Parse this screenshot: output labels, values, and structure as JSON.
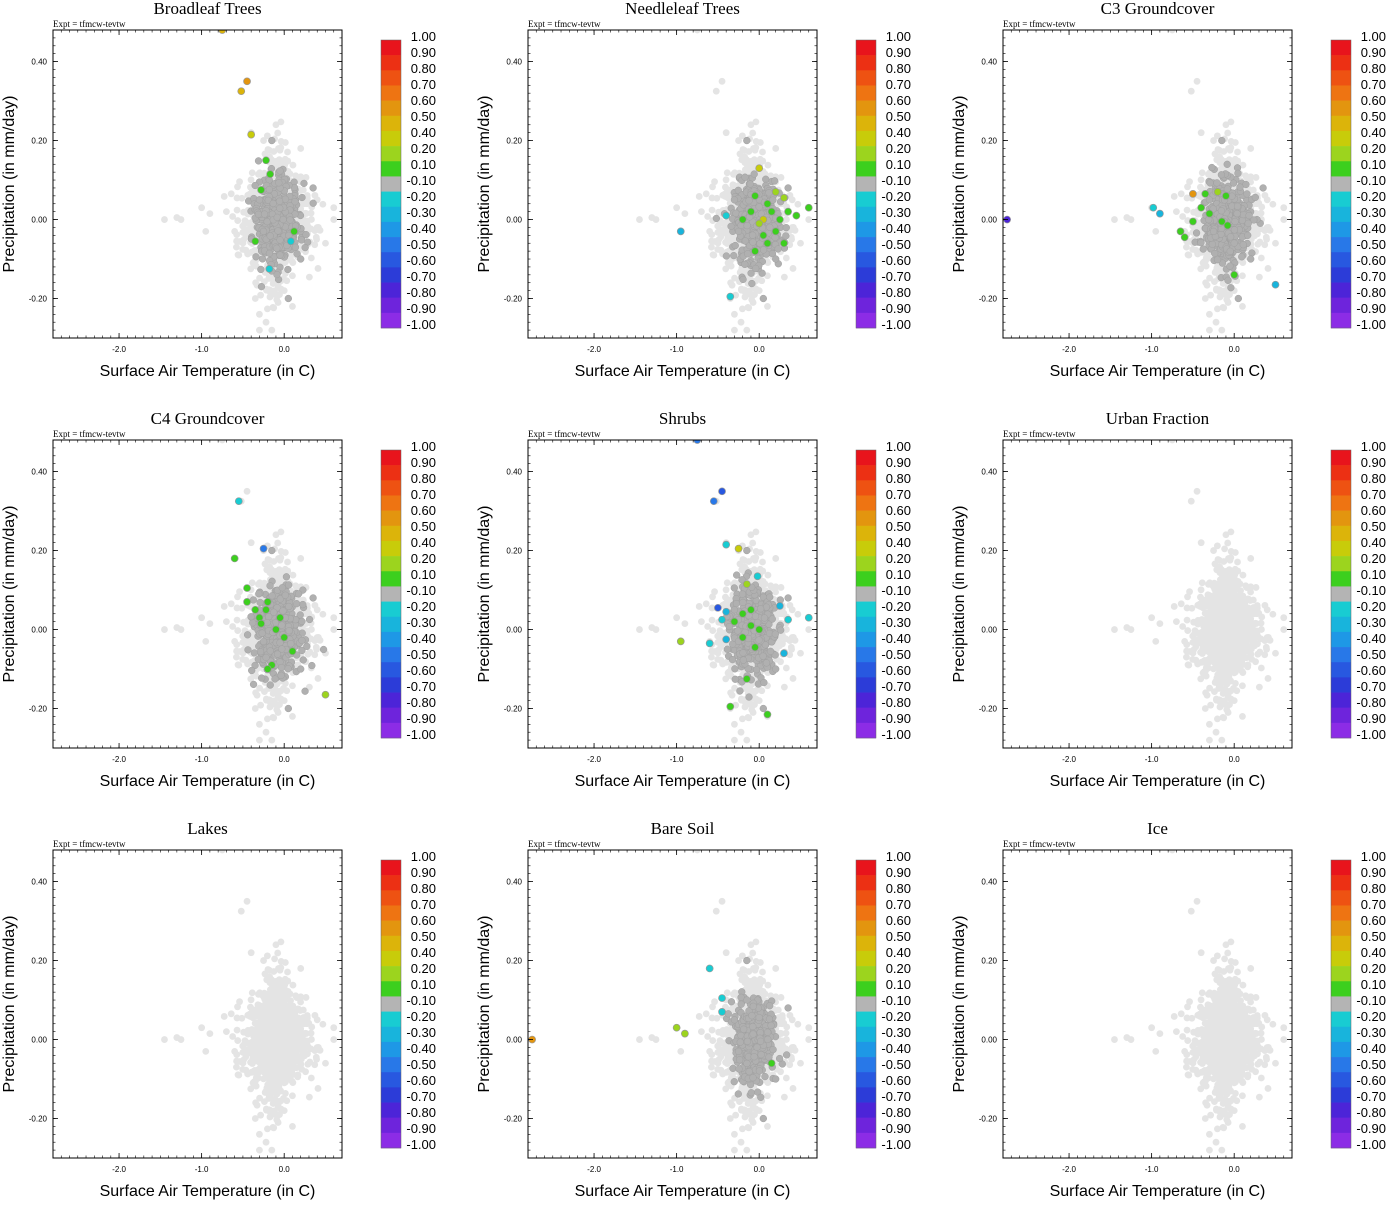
{
  "figure": {
    "expt_label": "Expt = tfmcw-tevtw"
  },
  "chart_data": [
    {
      "type": "scatter",
      "title": "Broadleaf Trees",
      "xlabel": "Surface Air Temperature (in C)",
      "ylabel": "Precipitation (in mm/day)",
      "xlim": [
        -2.8,
        0.7
      ],
      "ylim": [
        -0.3,
        0.48
      ],
      "xticks": [
        "-2.0",
        "-1.0",
        "0.0"
      ],
      "yticks": [
        "0.40",
        "0.20",
        "0.00",
        "-0.20"
      ],
      "highlight": [
        [
          -0.75,
          0.48,
          0.5
        ],
        [
          -0.45,
          0.35,
          0.55
        ],
        [
          -0.52,
          0.325,
          0.5
        ],
        [
          -0.4,
          0.215,
          0.35
        ],
        [
          -0.22,
          0.15,
          0.15
        ],
        [
          -0.17,
          0.115,
          0.15
        ],
        [
          -0.28,
          0.075,
          0.15
        ],
        [
          -0.35,
          -0.055,
          0.15
        ],
        [
          0.12,
          -0.03,
          0.15
        ],
        [
          -0.18,
          -0.125,
          -0.25
        ],
        [
          0.08,
          -0.055,
          -0.25
        ]
      ],
      "dark_spread": 1.0,
      "light_spread": 1.0
    },
    {
      "type": "scatter",
      "title": "Needleleaf Trees",
      "xlabel": "Surface Air Temperature (in C)",
      "ylabel": "Precipitation (in mm/day)",
      "xlim": [
        -2.8,
        0.7
      ],
      "ylim": [
        -0.3,
        0.48
      ],
      "xticks": [
        "-2.0",
        "-1.0",
        "0.0"
      ],
      "yticks": [
        "0.40",
        "0.20",
        "0.00",
        "-0.20"
      ],
      "highlight": [
        [
          0.0,
          0.13,
          0.35
        ],
        [
          0.2,
          0.07,
          0.3
        ],
        [
          0.3,
          0.055,
          0.25
        ],
        [
          0.1,
          0.04,
          0.15
        ],
        [
          -0.05,
          0.06,
          0.15
        ],
        [
          0.15,
          0.02,
          0.15
        ],
        [
          0.05,
          0.0,
          0.4
        ],
        [
          0.35,
          0.02,
          0.15
        ],
        [
          0.45,
          0.01,
          0.15
        ],
        [
          0.6,
          0.03,
          0.15
        ],
        [
          -0.2,
          0.0,
          0.15
        ],
        [
          0.0,
          -0.01,
          0.2
        ],
        [
          0.2,
          -0.03,
          0.15
        ],
        [
          0.1,
          -0.06,
          0.15
        ],
        [
          -0.05,
          -0.08,
          0.15
        ],
        [
          0.3,
          -0.06,
          0.15
        ],
        [
          0.05,
          -0.04,
          0.15
        ],
        [
          -0.4,
          0.01,
          -0.25
        ],
        [
          -0.95,
          -0.03,
          -0.35
        ],
        [
          -0.35,
          -0.195,
          -0.25
        ],
        [
          0.25,
          0.0,
          0.15
        ],
        [
          -0.1,
          0.02,
          0.15
        ]
      ],
      "dark_spread": 1.0,
      "light_spread": 1.0
    },
    {
      "type": "scatter",
      "title": "C3 Groundcover",
      "xlabel": "Surface Air Temperature (in C)",
      "ylabel": "Precipitation (in mm/day)",
      "xlim": [
        -2.8,
        0.7
      ],
      "ylim": [
        -0.3,
        0.48
      ],
      "xticks": [
        "-2.0",
        "-1.0",
        "0.0"
      ],
      "yticks": [
        "0.40",
        "0.20",
        "0.00",
        "-0.20"
      ],
      "highlight": [
        [
          -2.75,
          0.0,
          -0.8
        ],
        [
          -0.98,
          0.03,
          -0.25
        ],
        [
          -0.9,
          0.015,
          -0.3
        ],
        [
          -0.5,
          0.065,
          0.55
        ],
        [
          -0.35,
          0.065,
          0.15
        ],
        [
          -0.2,
          0.07,
          0.2
        ],
        [
          -0.1,
          0.06,
          0.15
        ],
        [
          -0.4,
          0.03,
          0.15
        ],
        [
          -0.3,
          0.015,
          0.15
        ],
        [
          -0.5,
          -0.005,
          0.15
        ],
        [
          -0.6,
          -0.045,
          0.15
        ],
        [
          -0.65,
          -0.03,
          0.15
        ],
        [
          -0.15,
          -0.005,
          0.15
        ],
        [
          -0.08,
          -0.015,
          0.15
        ],
        [
          0.0,
          -0.14,
          0.15
        ],
        [
          0.5,
          -0.165,
          -0.35
        ]
      ],
      "dark_spread": 1.0,
      "light_spread": 1.0
    },
    {
      "type": "scatter",
      "title": "C4 Groundcover",
      "xlabel": "Surface Air Temperature (in C)",
      "ylabel": "Precipitation (in mm/day)",
      "xlim": [
        -2.8,
        0.7
      ],
      "ylim": [
        -0.3,
        0.48
      ],
      "xticks": [
        "-2.0",
        "-1.0",
        "0.0"
      ],
      "yticks": [
        "0.40",
        "0.20",
        "0.00",
        "-0.20"
      ],
      "highlight": [
        [
          -0.55,
          0.325,
          -0.25
        ],
        [
          -0.25,
          0.205,
          -0.5
        ],
        [
          -0.6,
          0.18,
          0.15
        ],
        [
          -0.45,
          0.105,
          0.15
        ],
        [
          -0.45,
          0.07,
          0.15
        ],
        [
          -0.35,
          0.05,
          0.15
        ],
        [
          -0.22,
          0.05,
          0.15
        ],
        [
          -0.2,
          0.07,
          0.15
        ],
        [
          -0.3,
          0.03,
          0.15
        ],
        [
          -0.1,
          0.0,
          0.15
        ],
        [
          -0.05,
          0.03,
          0.15
        ],
        [
          0.0,
          -0.02,
          0.15
        ],
        [
          0.1,
          -0.055,
          0.15
        ],
        [
          -0.15,
          -0.09,
          0.15
        ],
        [
          -0.2,
          -0.1,
          0.15
        ],
        [
          0.5,
          -0.165,
          0.3
        ],
        [
          -0.28,
          0.015,
          0.15
        ]
      ],
      "dark_spread": 1.0,
      "light_spread": 1.0
    },
    {
      "type": "scatter",
      "title": "Shrubs",
      "xlabel": "Surface Air Temperature (in C)",
      "ylabel": "Precipitation (in mm/day)",
      "xlim": [
        -2.8,
        0.7
      ],
      "ylim": [
        -0.3,
        0.48
      ],
      "xticks": [
        "-2.0",
        "-1.0",
        "0.0"
      ],
      "yticks": [
        "0.40",
        "0.20",
        "0.00",
        "-0.20"
      ],
      "highlight": [
        [
          -0.75,
          0.48,
          -0.5
        ],
        [
          -0.45,
          0.35,
          -0.6
        ],
        [
          -0.55,
          0.325,
          -0.5
        ],
        [
          -0.4,
          0.215,
          -0.25
        ],
        [
          -0.25,
          0.205,
          0.4
        ],
        [
          -0.02,
          0.135,
          -0.25
        ],
        [
          -0.15,
          0.115,
          0.2
        ],
        [
          -0.5,
          0.055,
          -0.6
        ],
        [
          -0.4,
          0.045,
          -0.3
        ],
        [
          0.25,
          0.06,
          -0.3
        ],
        [
          0.35,
          0.025,
          -0.25
        ],
        [
          0.6,
          0.03,
          -0.25
        ],
        [
          -0.2,
          0.04,
          0.15
        ],
        [
          -0.1,
          0.05,
          0.15
        ],
        [
          -0.3,
          0.02,
          0.15
        ],
        [
          -0.1,
          0.01,
          0.15
        ],
        [
          0.0,
          0.0,
          0.15
        ],
        [
          -0.2,
          -0.02,
          0.15
        ],
        [
          -0.05,
          -0.045,
          0.15
        ],
        [
          -0.4,
          -0.025,
          -0.3
        ],
        [
          -0.95,
          -0.03,
          0.3
        ],
        [
          -0.6,
          -0.035,
          -0.2
        ],
        [
          0.3,
          -0.06,
          -0.3
        ],
        [
          -0.15,
          -0.125,
          0.15
        ],
        [
          -0.35,
          -0.195,
          0.15
        ],
        [
          0.1,
          -0.215,
          0.15
        ],
        [
          -0.45,
          0.025,
          -0.25
        ]
      ],
      "dark_spread": 1.0,
      "light_spread": 1.0
    },
    {
      "type": "scatter",
      "title": "Urban Fraction",
      "xlabel": "Surface Air Temperature (in C)",
      "ylabel": "Precipitation (in mm/day)",
      "xlim": [
        -2.8,
        0.7
      ],
      "ylim": [
        -0.3,
        0.48
      ],
      "xticks": [
        "-2.0",
        "-1.0",
        "0.0"
      ],
      "yticks": [
        "0.40",
        "0.20",
        "0.00",
        "-0.20"
      ],
      "highlight": [],
      "dark_spread": 0.0,
      "light_spread": 1.0
    },
    {
      "type": "scatter",
      "title": "Lakes",
      "xlabel": "Surface Air Temperature (in C)",
      "ylabel": "Precipitation (in mm/day)",
      "xlim": [
        -2.8,
        0.7
      ],
      "ylim": [
        -0.3,
        0.48
      ],
      "xticks": [
        "-2.0",
        "-1.0",
        "0.0"
      ],
      "yticks": [
        "0.40",
        "0.20",
        "0.00",
        "-0.20"
      ],
      "highlight": [],
      "dark_spread": 0.0,
      "light_spread": 1.0
    },
    {
      "type": "scatter",
      "title": "Bare Soil",
      "xlabel": "Surface Air Temperature (in C)",
      "ylabel": "Precipitation (in mm/day)",
      "xlim": [
        -2.8,
        0.7
      ],
      "ylim": [
        -0.3,
        0.48
      ],
      "xticks": [
        "-2.0",
        "-1.0",
        "0.0"
      ],
      "yticks": [
        "0.40",
        "0.20",
        "0.00",
        "-0.20"
      ],
      "highlight": [
        [
          -2.75,
          0.0,
          0.6
        ],
        [
          -1.0,
          0.03,
          0.2
        ],
        [
          -0.9,
          0.015,
          0.2
        ],
        [
          -0.6,
          0.18,
          -0.25
        ],
        [
          -0.45,
          0.105,
          -0.25
        ],
        [
          -0.45,
          0.07,
          -0.25
        ],
        [
          0.15,
          -0.06,
          0.15
        ]
      ],
      "dark_spread": 0.9,
      "light_spread": 1.0
    },
    {
      "type": "scatter",
      "title": "Ice",
      "xlabel": "Surface Air Temperature (in C)",
      "ylabel": "Precipitation (in mm/day)",
      "xlim": [
        -2.8,
        0.7
      ],
      "ylim": [
        -0.3,
        0.48
      ],
      "xticks": [
        "-2.0",
        "-1.0",
        "0.0"
      ],
      "yticks": [
        "0.40",
        "0.20",
        "0.00",
        "-0.20"
      ],
      "highlight": [],
      "dark_spread": 0.0,
      "light_spread": 1.0
    }
  ],
  "colorbar": {
    "labels": [
      "1.00",
      "0.90",
      "0.80",
      "0.70",
      "0.60",
      "0.50",
      "0.40",
      "0.20",
      "0.10",
      "-0.10",
      "-0.20",
      "-0.30",
      "-0.40",
      "-0.50",
      "-0.60",
      "-0.70",
      "-0.80",
      "-0.90",
      "-1.00"
    ],
    "colors": [
      "#e8141c",
      "#ec3014",
      "#ee5212",
      "#ee7412",
      "#e3950f",
      "#dcb40a",
      "#c8cc0a",
      "#9cd41e",
      "#3ccf1e",
      "#b4b4b4",
      "#18ccd2",
      "#18b4dc",
      "#1e98e6",
      "#2878e8",
      "#2858e0",
      "#2c3cd8",
      "#4c24d8",
      "#6e24dc",
      "#8c2ce6"
    ]
  },
  "colors": {
    "dark_gray": "#b0b0b0",
    "light_gray": "#e4e4e4"
  }
}
